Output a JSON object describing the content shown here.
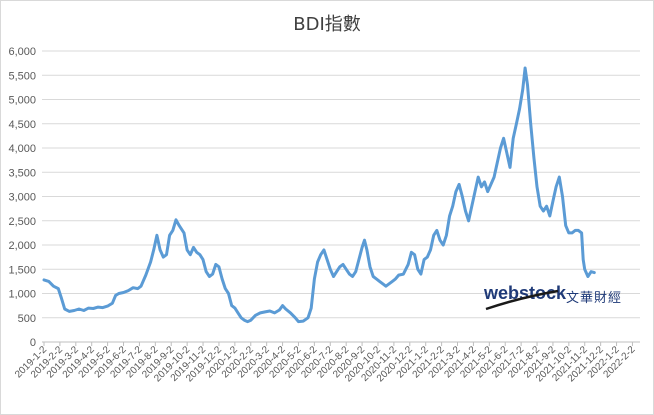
{
  "title": "BDI指數",
  "logo": {
    "brand": "webstock",
    "brand_cn": "文華財經"
  },
  "colors": {
    "line": "#5b9bd5",
    "grid": "#d9d9d9",
    "axis": "#bfbfbf"
  },
  "chart_data": {
    "type": "line",
    "title": "BDI指數",
    "xlabel": "",
    "ylabel": "",
    "ylim": [
      0,
      6000
    ],
    "yticks": [
      "0",
      "500",
      "1,000",
      "1,500",
      "2,000",
      "2,500",
      "3,000",
      "3,500",
      "4,000",
      "4,500",
      "5,000",
      "5,500",
      "6,000"
    ],
    "ytick_values": [
      0,
      500,
      1000,
      1500,
      2000,
      2500,
      3000,
      3500,
      4000,
      4500,
      5000,
      5500,
      6000
    ],
    "xticks": [
      "2019-1-2",
      "2019-2-2",
      "2019-3-2",
      "2019-4-2",
      "2019-5-2",
      "2019-6-2",
      "2019-7-2",
      "2019-8-2",
      "2019-9-2",
      "2019-10-2",
      "2019-11-2",
      "2019-12-2",
      "2020-1-2",
      "2020-2-2",
      "2020-3-2",
      "2020-4-2",
      "2020-5-2",
      "2020-6-2",
      "2020-7-2",
      "2020-8-2",
      "2020-9-2",
      "2020-10-2",
      "2020-11-2",
      "2020-12-2",
      "2021-1-2",
      "2021-2-2",
      "2021-3-2",
      "2021-4-2",
      "2021-5-2",
      "2021-6-2",
      "2021-7-2",
      "2021-8-2",
      "2021-9-2",
      "2021-10-2",
      "2021-11-2",
      "2021-12-2",
      "2022-1-2",
      "2022-2-2"
    ],
    "grid": true,
    "legend": "none",
    "series": [
      {
        "values": [
          [
            0,
            1280
          ],
          [
            0.3,
            1250
          ],
          [
            0.6,
            1150
          ],
          [
            0.9,
            1100
          ],
          [
            1.1,
            900
          ],
          [
            1.3,
            680
          ],
          [
            1.6,
            630
          ],
          [
            1.9,
            650
          ],
          [
            2.2,
            680
          ],
          [
            2.5,
            650
          ],
          [
            2.8,
            700
          ],
          [
            3.1,
            690
          ],
          [
            3.4,
            720
          ],
          [
            3.7,
            710
          ],
          [
            4.0,
            740
          ],
          [
            4.3,
            800
          ],
          [
            4.5,
            960
          ],
          [
            4.7,
            1000
          ],
          [
            5.0,
            1020
          ],
          [
            5.3,
            1060
          ],
          [
            5.6,
            1120
          ],
          [
            5.9,
            1100
          ],
          [
            6.1,
            1150
          ],
          [
            6.4,
            1380
          ],
          [
            6.7,
            1650
          ],
          [
            6.9,
            1900
          ],
          [
            7.1,
            2200
          ],
          [
            7.3,
            1900
          ],
          [
            7.5,
            1750
          ],
          [
            7.7,
            1800
          ],
          [
            7.9,
            2200
          ],
          [
            8.1,
            2300
          ],
          [
            8.3,
            2520
          ],
          [
            8.5,
            2400
          ],
          [
            8.8,
            2250
          ],
          [
            9.0,
            1900
          ],
          [
            9.2,
            1800
          ],
          [
            9.4,
            1950
          ],
          [
            9.6,
            1850
          ],
          [
            9.8,
            1800
          ],
          [
            10.0,
            1700
          ],
          [
            10.2,
            1450
          ],
          [
            10.4,
            1350
          ],
          [
            10.6,
            1400
          ],
          [
            10.8,
            1600
          ],
          [
            11.0,
            1550
          ],
          [
            11.2,
            1300
          ],
          [
            11.4,
            1100
          ],
          [
            11.6,
            1000
          ],
          [
            11.8,
            750
          ],
          [
            12.0,
            700
          ],
          [
            12.2,
            600
          ],
          [
            12.4,
            500
          ],
          [
            12.6,
            450
          ],
          [
            12.8,
            420
          ],
          [
            13.0,
            450
          ],
          [
            13.3,
            550
          ],
          [
            13.6,
            600
          ],
          [
            13.9,
            620
          ],
          [
            14.2,
            640
          ],
          [
            14.5,
            600
          ],
          [
            14.8,
            660
          ],
          [
            15.0,
            750
          ],
          [
            15.2,
            680
          ],
          [
            15.5,
            600
          ],
          [
            15.8,
            500
          ],
          [
            16.0,
            420
          ],
          [
            16.3,
            430
          ],
          [
            16.6,
            500
          ],
          [
            16.8,
            700
          ],
          [
            16.9,
            1000
          ],
          [
            17.0,
            1300
          ],
          [
            17.2,
            1650
          ],
          [
            17.4,
            1800
          ],
          [
            17.6,
            1900
          ],
          [
            17.8,
            1700
          ],
          [
            18.0,
            1500
          ],
          [
            18.2,
            1350
          ],
          [
            18.4,
            1450
          ],
          [
            18.6,
            1550
          ],
          [
            18.8,
            1600
          ],
          [
            19.0,
            1500
          ],
          [
            19.2,
            1400
          ],
          [
            19.4,
            1350
          ],
          [
            19.6,
            1450
          ],
          [
            19.8,
            1700
          ],
          [
            20.0,
            1950
          ],
          [
            20.15,
            2100
          ],
          [
            20.3,
            1900
          ],
          [
            20.5,
            1550
          ],
          [
            20.7,
            1350
          ],
          [
            20.9,
            1300
          ],
          [
            21.1,
            1250
          ],
          [
            21.3,
            1200
          ],
          [
            21.5,
            1150
          ],
          [
            21.7,
            1200
          ],
          [
            21.9,
            1250
          ],
          [
            22.1,
            1300
          ],
          [
            22.3,
            1380
          ],
          [
            22.6,
            1400
          ],
          [
            22.9,
            1600
          ],
          [
            23.1,
            1850
          ],
          [
            23.3,
            1800
          ],
          [
            23.5,
            1500
          ],
          [
            23.7,
            1400
          ],
          [
            23.9,
            1700
          ],
          [
            24.1,
            1750
          ],
          [
            24.3,
            1900
          ],
          [
            24.5,
            2200
          ],
          [
            24.7,
            2300
          ],
          [
            24.9,
            2100
          ],
          [
            25.1,
            2000
          ],
          [
            25.3,
            2200
          ],
          [
            25.5,
            2600
          ],
          [
            25.7,
            2800
          ],
          [
            25.9,
            3100
          ],
          [
            26.1,
            3250
          ],
          [
            26.3,
            3000
          ],
          [
            26.5,
            2700
          ],
          [
            26.7,
            2500
          ],
          [
            26.9,
            2800
          ],
          [
            27.1,
            3100
          ],
          [
            27.3,
            3400
          ],
          [
            27.5,
            3200
          ],
          [
            27.7,
            3300
          ],
          [
            27.9,
            3100
          ],
          [
            28.1,
            3250
          ],
          [
            28.3,
            3400
          ],
          [
            28.5,
            3700
          ],
          [
            28.7,
            4000
          ],
          [
            28.9,
            4200
          ],
          [
            29.1,
            3900
          ],
          [
            29.3,
            3600
          ],
          [
            29.5,
            4200
          ],
          [
            29.7,
            4500
          ],
          [
            29.9,
            4800
          ],
          [
            30.1,
            5200
          ],
          [
            30.25,
            5650
          ],
          [
            30.4,
            5300
          ],
          [
            30.6,
            4500
          ],
          [
            30.8,
            3800
          ],
          [
            31.0,
            3200
          ],
          [
            31.2,
            2800
          ],
          [
            31.4,
            2700
          ],
          [
            31.6,
            2800
          ],
          [
            31.8,
            2600
          ],
          [
            32.0,
            2900
          ],
          [
            32.2,
            3200
          ],
          [
            32.4,
            3400
          ],
          [
            32.6,
            3000
          ],
          [
            32.8,
            2400
          ],
          [
            33.0,
            2250
          ],
          [
            33.2,
            2250
          ],
          [
            33.4,
            2300
          ],
          [
            33.6,
            2300
          ],
          [
            33.8,
            2250
          ],
          [
            33.9,
            1700
          ],
          [
            34.0,
            1500
          ],
          [
            34.2,
            1350
          ],
          [
            34.4,
            1450
          ],
          [
            34.6,
            1430
          ]
        ]
      }
    ]
  }
}
